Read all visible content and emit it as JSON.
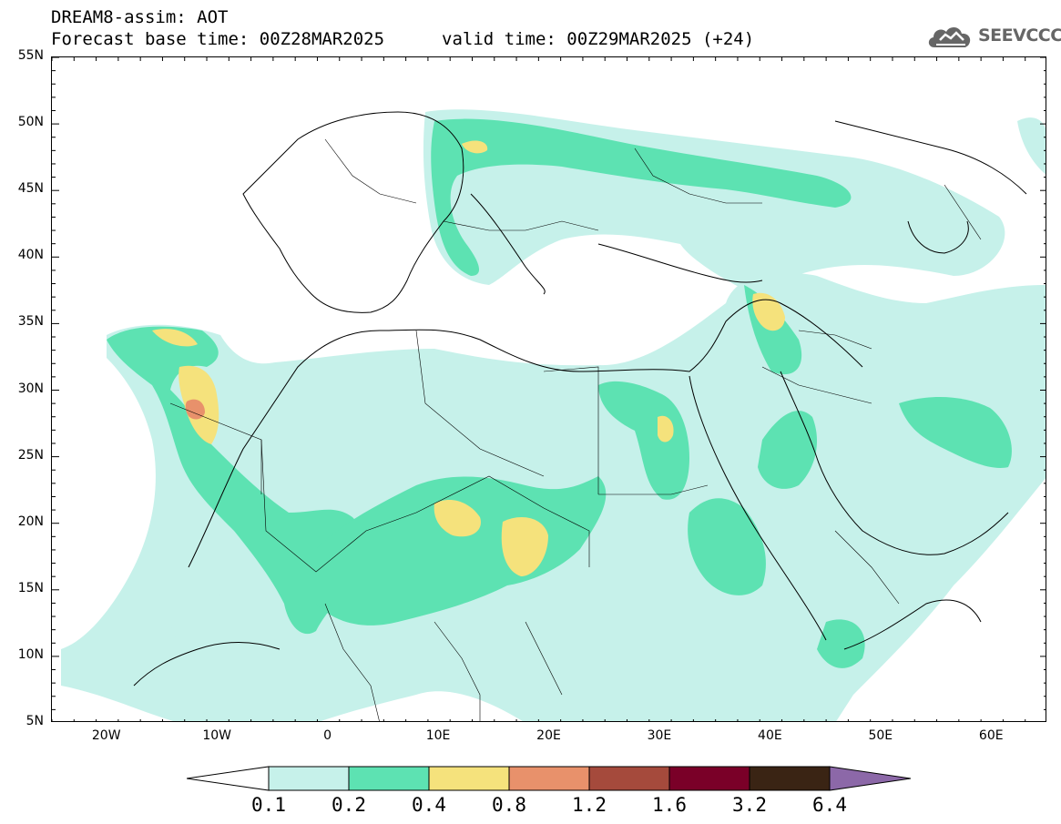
{
  "title": {
    "line1": "DREAM8-assim: AOT",
    "line2": "Forecast base time: 00Z28MAR2025",
    "valid": "valid time: 00Z29MAR2025 (+24)"
  },
  "logo": {
    "text": "SEEVCCC",
    "icon": "cloud-icon"
  },
  "map": {
    "lat_labels": [
      "55N",
      "50N",
      "45N",
      "40N",
      "35N",
      "30N",
      "25N",
      "20N",
      "15N",
      "10N",
      "5N"
    ],
    "lon_labels": [
      "20W",
      "10W",
      "0",
      "10E",
      "20E",
      "30E",
      "40E",
      "50E",
      "60E"
    ],
    "lon_range": [
      -25,
      65
    ],
    "lat_range": [
      5,
      55
    ]
  },
  "colorbar": {
    "levels": [
      "0.1",
      "0.2",
      "0.4",
      "0.8",
      "1.2",
      "1.6",
      "3.2",
      "6.4"
    ],
    "colors": [
      "#ffffff",
      "#c6f1ea",
      "#5de2b2",
      "#f5e27c",
      "#e8916b",
      "#a54a3c",
      "#7a0028",
      "#3a2414",
      "#8c68a8"
    ]
  },
  "palette": {
    "land_light": "#c6f1ea",
    "land_medium": "#5de2b2",
    "high_yellow": "#f5e27c",
    "peak_orange": "#e8916b"
  }
}
